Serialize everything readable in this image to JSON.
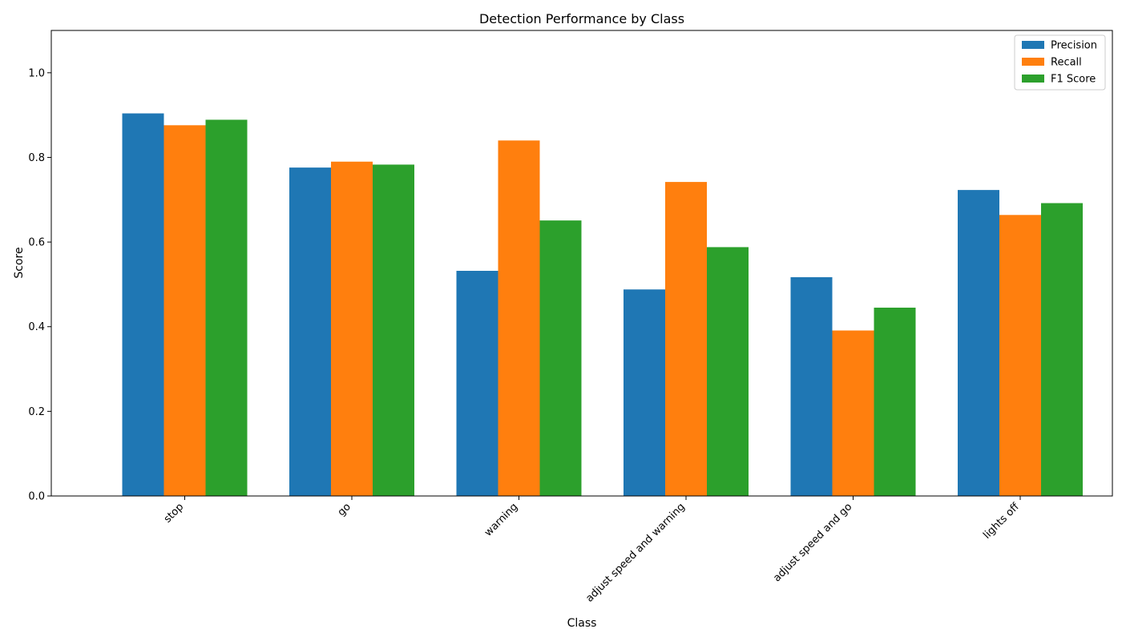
{
  "chart_data": {
    "type": "bar",
    "title": "Detection Performance by Class",
    "xlabel": "Class",
    "ylabel": "Score",
    "categories": [
      "stop",
      "go",
      "warning",
      "adjust speed and warning",
      "adjust speed and go",
      "lights off"
    ],
    "series": [
      {
        "name": "Precision",
        "color": "#1f77b4",
        "values": [
          0.904,
          0.776,
          0.532,
          0.488,
          0.517,
          0.723
        ]
      },
      {
        "name": "Recall",
        "color": "#ff7f0e",
        "values": [
          0.876,
          0.79,
          0.84,
          0.742,
          0.391,
          0.664
        ]
      },
      {
        "name": "F1 Score",
        "color": "#2ca02c",
        "values": [
          0.889,
          0.783,
          0.651,
          0.588,
          0.445,
          0.692
        ]
      }
    ],
    "ylim": [
      0,
      1.1
    ],
    "yticks": [
      0.0,
      0.2,
      0.4,
      0.6,
      0.8,
      1.0
    ],
    "ytick_labels": [
      "0.0",
      "0.2",
      "0.4",
      "0.6",
      "0.8",
      "1.0"
    ],
    "xtick_rotation": "45 degrees, right-aligned",
    "grid": false,
    "legend": "top-right"
  }
}
